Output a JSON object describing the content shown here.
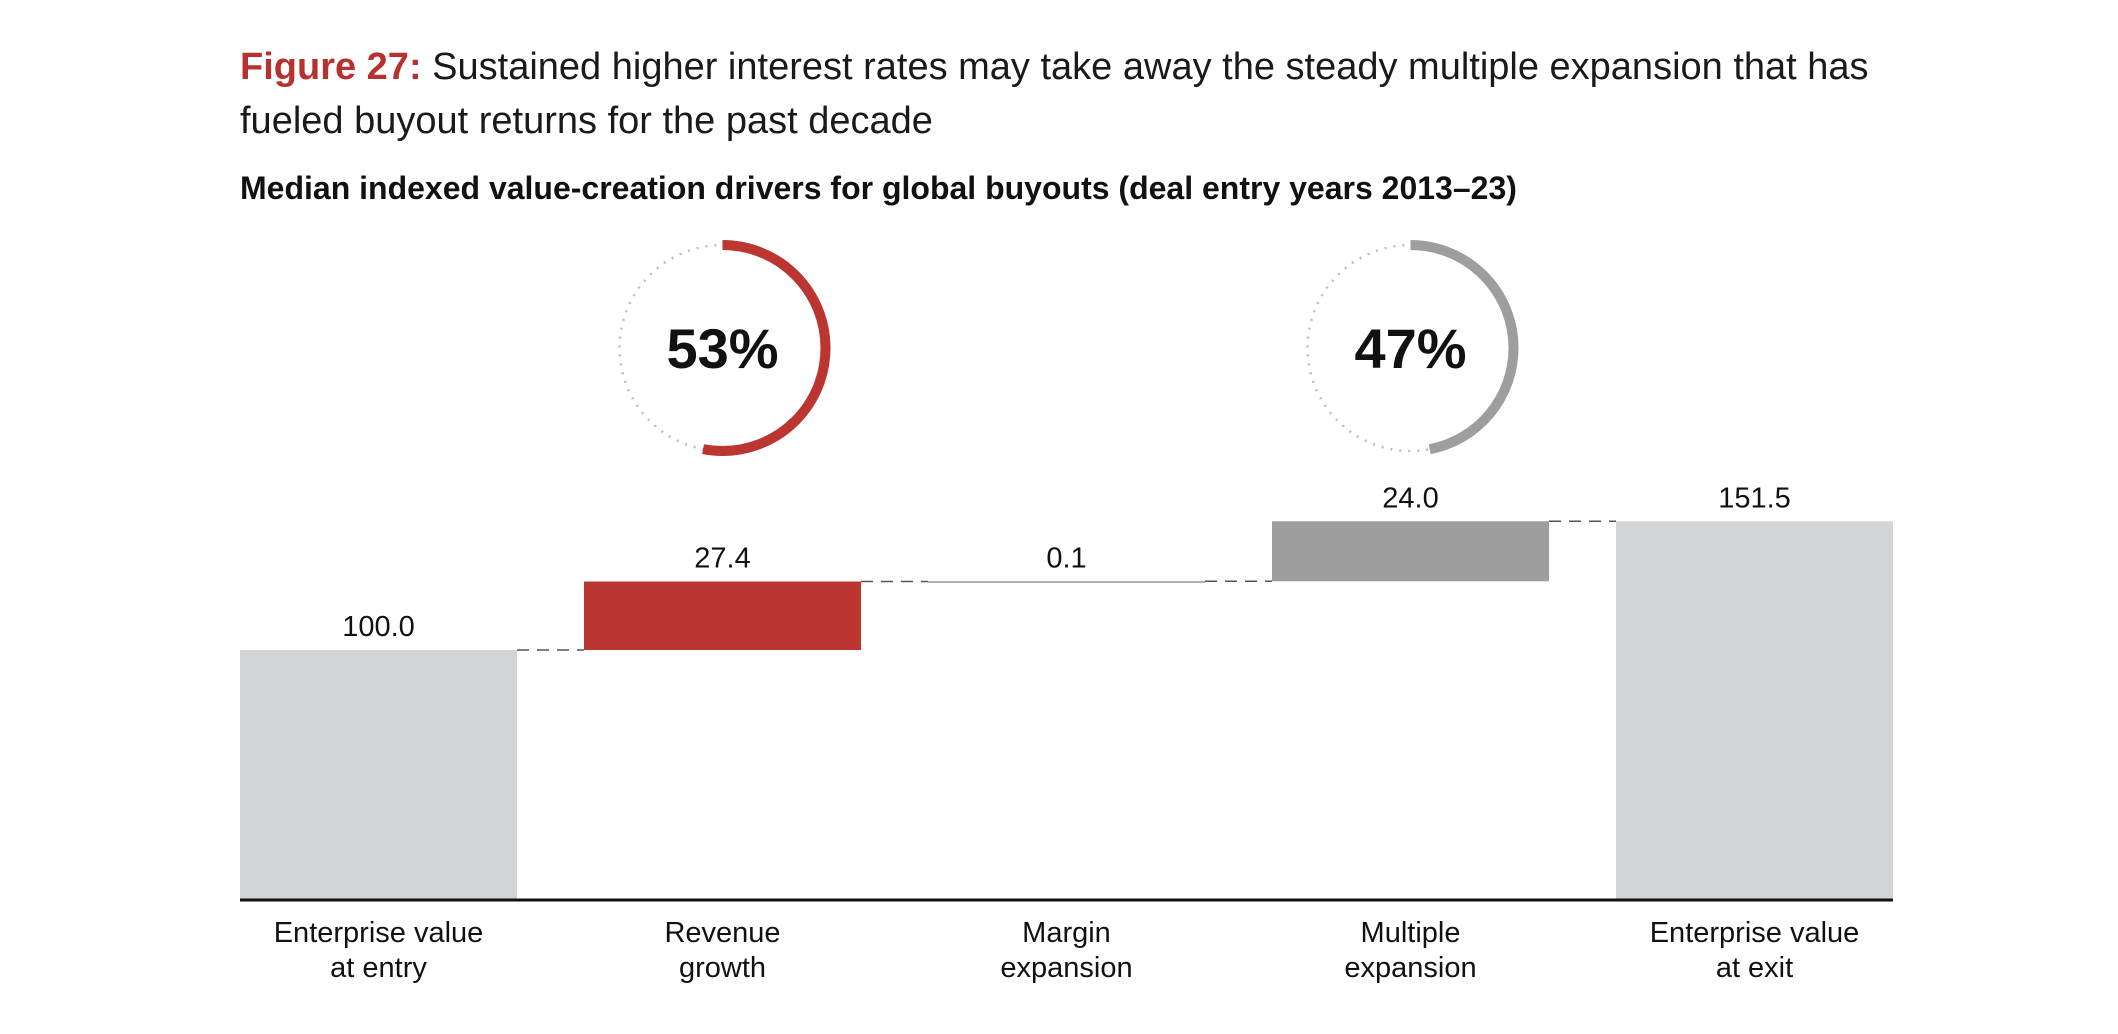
{
  "header": {
    "figure_label": "Figure 27:",
    "figure_text": "Sustained higher interest rates may take away the steady multiple expansion that has fueled buyout returns for the past decade"
  },
  "chart_data": {
    "type": "bar",
    "subtype": "waterfall",
    "title": "Median indexed value-creation drivers for global buyouts (deal entry years 2013–23)",
    "categories": [
      "Enterprise value at entry",
      "Revenue growth",
      "Margin expansion",
      "Multiple expansion",
      "Enterprise value at exit"
    ],
    "category_lines": [
      [
        "Enterprise value",
        "at entry"
      ],
      [
        "Revenue",
        "growth"
      ],
      [
        "Margin",
        "expansion"
      ],
      [
        "Multiple",
        "expansion"
      ],
      [
        "Enterprise value",
        "at exit"
      ]
    ],
    "values": [
      100.0,
      27.4,
      0.1,
      24.0,
      151.5
    ],
    "value_labels": [
      "100.0",
      "27.4",
      "0.1",
      "24.0",
      "151.5"
    ],
    "bar_kinds": [
      "total",
      "delta",
      "delta",
      "delta",
      "total"
    ],
    "colors": {
      "total": "#d1d5d5",
      "revenue": "#bb3531",
      "margin": "#9c9c9c",
      "multiple": "#9e9e9e",
      "axis": "#111111",
      "connector": "#555555",
      "donut_track": "#bdbdbd"
    },
    "bar_colors": [
      "#d1d5d5",
      "#bb3531",
      "#9c9c9c",
      "#9e9e9e",
      "#d1d5d5"
    ],
    "ylim": [
      0,
      151.5
    ],
    "annotations": [
      {
        "label": "53%",
        "value": 53,
        "color": "#bb3531",
        "over_category": "Revenue growth"
      },
      {
        "label": "47%",
        "value": 47,
        "color": "#9e9e9e",
        "over_category": "Multiple expansion"
      }
    ]
  }
}
